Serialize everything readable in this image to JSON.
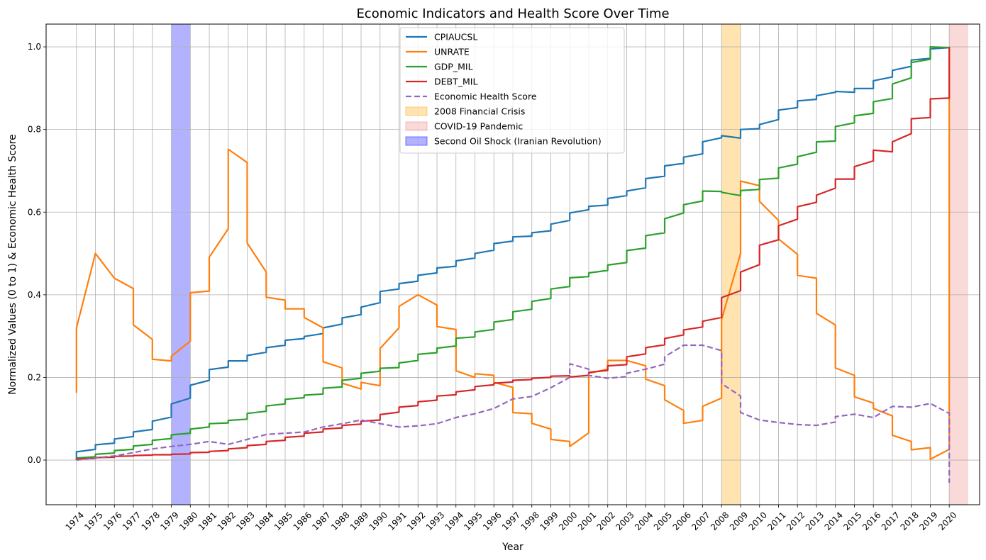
{
  "chart_data": {
    "type": "line",
    "title": "Economic Indicators and Health Score Over Time",
    "xlabel": "Year",
    "ylabel": "Normalized Values (0 to 1) & Economic Health Score",
    "xlim": [
      1972.4,
      2021.6
    ],
    "ylim": [
      -0.108,
      1.055
    ],
    "x_ticks": [
      1974,
      1975,
      1976,
      1977,
      1978,
      1979,
      1980,
      1981,
      1982,
      1983,
      1984,
      1985,
      1986,
      1987,
      1988,
      1989,
      1990,
      1991,
      1992,
      1993,
      1994,
      1995,
      1996,
      1997,
      1998,
      1999,
      2000,
      2001,
      2002,
      2003,
      2004,
      2005,
      2006,
      2007,
      2008,
      2009,
      2010,
      2011,
      2012,
      2013,
      2014,
      2015,
      2016,
      2017,
      2018,
      2019,
      2020
    ],
    "y_ticks": [
      0.0,
      0.2,
      0.4,
      0.6,
      0.8,
      1.0
    ],
    "y_tick_labels": [
      "0.0",
      "0.2",
      "0.4",
      "0.6",
      "0.8",
      "1.0"
    ],
    "grid": true,
    "legend_position": "top-center",
    "shaded_regions": [
      {
        "label": "2008 Financial Crisis",
        "start": 2008,
        "end": 2009,
        "color": "#ffa500",
        "opacity": 0.3
      },
      {
        "label": "COVID-19 Pandemic",
        "start": 2020,
        "end": 2021,
        "color": "#f08080",
        "opacity": 0.3
      },
      {
        "label": "Second Oil Shock (Iranian Revolution)",
        "start": 1979,
        "end": 1980,
        "color": "#0000ff",
        "opacity": 0.3
      }
    ],
    "series": [
      {
        "name": "CPIAUCSL",
        "color": "#1f77b4",
        "style": "solid",
        "x": [
          1974,
          1974,
          1975,
          1975,
          1976,
          1976,
          1977,
          1977,
          1978,
          1978,
          1979,
          1979,
          1980,
          1980,
          1981,
          1981,
          1982,
          1982,
          1983,
          1983,
          1984,
          1984,
          1985,
          1985,
          1986,
          1986,
          1987,
          1987,
          1988,
          1988,
          1989,
          1989,
          1990,
          1990,
          1991,
          1991,
          1992,
          1992,
          1993,
          1993,
          1994,
          1994,
          1995,
          1995,
          1996,
          1996,
          1997,
          1997,
          1998,
          1998,
          1999,
          1999,
          2000,
          2000,
          2001,
          2001,
          2002,
          2002,
          2003,
          2003,
          2004,
          2004,
          2005,
          2005,
          2006,
          2006,
          2007,
          2007,
          2008,
          2008,
          2009,
          2009,
          2010,
          2010,
          2011,
          2011,
          2012,
          2012,
          2013,
          2013,
          2014,
          2014,
          2015,
          2015,
          2016,
          2016,
          2017,
          2017,
          2018,
          2018,
          2019,
          2019,
          2020,
          2020
        ],
        "y": [
          0.004,
          0.02,
          0.026,
          0.037,
          0.041,
          0.051,
          0.057,
          0.068,
          0.074,
          0.094,
          0.104,
          0.136,
          0.15,
          0.181,
          0.193,
          0.219,
          0.225,
          0.24,
          0.24,
          0.253,
          0.261,
          0.272,
          0.278,
          0.29,
          0.294,
          0.299,
          0.306,
          0.32,
          0.329,
          0.344,
          0.352,
          0.37,
          0.381,
          0.408,
          0.414,
          0.427,
          0.433,
          0.447,
          0.453,
          0.465,
          0.469,
          0.482,
          0.489,
          0.5,
          0.508,
          0.524,
          0.53,
          0.54,
          0.542,
          0.55,
          0.555,
          0.571,
          0.58,
          0.598,
          0.606,
          0.614,
          0.617,
          0.633,
          0.64,
          0.651,
          0.659,
          0.681,
          0.687,
          0.712,
          0.718,
          0.733,
          0.741,
          0.77,
          0.78,
          0.785,
          0.779,
          0.8,
          0.802,
          0.812,
          0.824,
          0.847,
          0.853,
          0.869,
          0.873,
          0.882,
          0.89,
          0.892,
          0.89,
          0.899,
          0.899,
          0.918,
          0.927,
          0.943,
          0.953,
          0.968,
          0.972,
          0.995,
          0.998,
          1.0
        ]
      },
      {
        "name": "UNRATE",
        "color": "#ff7f0e",
        "style": "solid",
        "x": [
          1974,
          1974,
          1975,
          1975,
          1976,
          1976,
          1977,
          1977,
          1978,
          1978,
          1979,
          1979,
          1980,
          1980,
          1981,
          1981,
          1982,
          1982,
          1983,
          1983,
          1984,
          1984,
          1985,
          1985,
          1986,
          1986,
          1987,
          1987,
          1988,
          1988,
          1989,
          1989,
          1990,
          1990,
          1991,
          1991,
          1992,
          1992,
          1993,
          1993,
          1994,
          1994,
          1995,
          1995,
          1996,
          1996,
          1997,
          1997,
          1998,
          1998,
          1999,
          1999,
          2000,
          2000,
          2001,
          2001,
          2002,
          2002,
          2003,
          2003,
          2004,
          2004,
          2005,
          2005,
          2006,
          2006,
          2007,
          2007,
          2008,
          2008,
          2009,
          2009,
          2010,
          2010,
          2011,
          2011,
          2012,
          2012,
          2013,
          2013,
          2014,
          2014,
          2015,
          2015,
          2016,
          2016,
          2017,
          2017,
          2018,
          2018,
          2019,
          2019,
          2020,
          2020
        ],
        "y": [
          0.163,
          0.32,
          0.5,
          0.5,
          0.44,
          0.44,
          0.415,
          0.327,
          0.292,
          0.244,
          0.24,
          0.251,
          0.288,
          0.405,
          0.409,
          0.491,
          0.56,
          0.752,
          0.72,
          0.525,
          0.455,
          0.394,
          0.387,
          0.366,
          0.366,
          0.345,
          0.32,
          0.238,
          0.223,
          0.186,
          0.172,
          0.188,
          0.18,
          0.27,
          0.32,
          0.372,
          0.4,
          0.4,
          0.375,
          0.323,
          0.316,
          0.216,
          0.2,
          0.209,
          0.205,
          0.188,
          0.176,
          0.115,
          0.112,
          0.089,
          0.075,
          0.05,
          0.045,
          0.033,
          0.066,
          0.21,
          0.22,
          0.241,
          0.241,
          0.241,
          0.228,
          0.196,
          0.18,
          0.146,
          0.12,
          0.089,
          0.096,
          0.13,
          0.15,
          0.34,
          0.5,
          0.675,
          0.664,
          0.626,
          0.58,
          0.535,
          0.498,
          0.447,
          0.44,
          0.355,
          0.327,
          0.223,
          0.205,
          0.153,
          0.138,
          0.125,
          0.107,
          0.06,
          0.045,
          0.025,
          0.03,
          0.002,
          0.026,
          1.0
        ]
      },
      {
        "name": "GDP_MIL",
        "color": "#2ca02c",
        "style": "solid",
        "x": [
          1974,
          1974,
          1975,
          1975,
          1976,
          1976,
          1977,
          1977,
          1978,
          1978,
          1979,
          1979,
          1980,
          1980,
          1981,
          1981,
          1982,
          1982,
          1983,
          1983,
          1984,
          1984,
          1985,
          1985,
          1986,
          1986,
          1987,
          1987,
          1988,
          1988,
          1989,
          1989,
          1990,
          1990,
          1991,
          1991,
          1992,
          1992,
          1993,
          1993,
          1994,
          1994,
          1995,
          1995,
          1996,
          1996,
          1997,
          1997,
          1998,
          1998,
          1999,
          1999,
          2000,
          2000,
          2001,
          2001,
          2002,
          2002,
          2003,
          2003,
          2004,
          2004,
          2005,
          2005,
          2006,
          2006,
          2007,
          2007,
          2008,
          2008,
          2009,
          2009,
          2010,
          2010,
          2011,
          2011,
          2012,
          2012,
          2013,
          2013,
          2014,
          2014,
          2015,
          2015,
          2016,
          2016,
          2017,
          2017,
          2018,
          2018,
          2019,
          2019,
          2020,
          2020
        ],
        "y": [
          0.002,
          0.005,
          0.008,
          0.014,
          0.017,
          0.023,
          0.026,
          0.034,
          0.038,
          0.048,
          0.052,
          0.061,
          0.065,
          0.075,
          0.08,
          0.088,
          0.09,
          0.096,
          0.099,
          0.113,
          0.118,
          0.131,
          0.136,
          0.147,
          0.151,
          0.157,
          0.16,
          0.174,
          0.177,
          0.193,
          0.198,
          0.21,
          0.215,
          0.222,
          0.224,
          0.235,
          0.241,
          0.256,
          0.26,
          0.271,
          0.276,
          0.295,
          0.298,
          0.31,
          0.316,
          0.334,
          0.34,
          0.359,
          0.365,
          0.384,
          0.391,
          0.414,
          0.42,
          0.441,
          0.444,
          0.453,
          0.459,
          0.472,
          0.478,
          0.507,
          0.513,
          0.543,
          0.55,
          0.584,
          0.598,
          0.618,
          0.627,
          0.651,
          0.65,
          0.648,
          0.64,
          0.652,
          0.655,
          0.679,
          0.682,
          0.707,
          0.716,
          0.734,
          0.745,
          0.77,
          0.772,
          0.807,
          0.816,
          0.833,
          0.839,
          0.867,
          0.875,
          0.91,
          0.925,
          0.962,
          0.97,
          1.0,
          0.998,
          1.0
        ]
      },
      {
        "name": "DEBT_MIL",
        "color": "#d62728",
        "style": "solid",
        "x": [
          1974,
          1974,
          1975,
          1975,
          1976,
          1976,
          1977,
          1977,
          1978,
          1978,
          1979,
          1979,
          1980,
          1980,
          1981,
          1981,
          1982,
          1982,
          1983,
          1983,
          1984,
          1984,
          1985,
          1985,
          1986,
          1986,
          1987,
          1987,
          1988,
          1988,
          1989,
          1989,
          1990,
          1990,
          1991,
          1991,
          1992,
          1992,
          1993,
          1993,
          1994,
          1994,
          1995,
          1995,
          1996,
          1996,
          1997,
          1997,
          1998,
          1998,
          1999,
          1999,
          2000,
          2000,
          2001,
          2001,
          2002,
          2002,
          2003,
          2003,
          2004,
          2004,
          2005,
          2005,
          2006,
          2006,
          2007,
          2007,
          2008,
          2008,
          2009,
          2009,
          2010,
          2010,
          2011,
          2011,
          2012,
          2012,
          2013,
          2013,
          2014,
          2014,
          2015,
          2015,
          2016,
          2016,
          2017,
          2017,
          2018,
          2018,
          2019,
          2019,
          2020,
          2020
        ],
        "y": [
          0.0,
          0.003,
          0.004,
          0.006,
          0.007,
          0.009,
          0.01,
          0.011,
          0.012,
          0.013,
          0.013,
          0.014,
          0.015,
          0.018,
          0.019,
          0.021,
          0.023,
          0.027,
          0.03,
          0.035,
          0.038,
          0.045,
          0.048,
          0.055,
          0.058,
          0.065,
          0.068,
          0.075,
          0.078,
          0.084,
          0.087,
          0.094,
          0.097,
          0.11,
          0.116,
          0.128,
          0.132,
          0.141,
          0.145,
          0.155,
          0.158,
          0.165,
          0.17,
          0.178,
          0.182,
          0.186,
          0.189,
          0.193,
          0.195,
          0.198,
          0.2,
          0.203,
          0.204,
          0.201,
          0.205,
          0.212,
          0.217,
          0.228,
          0.231,
          0.25,
          0.257,
          0.272,
          0.279,
          0.294,
          0.303,
          0.315,
          0.322,
          0.336,
          0.345,
          0.393,
          0.41,
          0.455,
          0.473,
          0.52,
          0.533,
          0.567,
          0.583,
          0.613,
          0.624,
          0.641,
          0.658,
          0.68,
          0.68,
          0.71,
          0.724,
          0.75,
          0.746,
          0.77,
          0.79,
          0.826,
          0.829,
          0.874,
          0.876,
          1.0
        ]
      },
      {
        "name": "Economic Health Score",
        "color": "#9467bd",
        "style": "dashed",
        "x": [
          1974,
          1975,
          1976,
          1977,
          1978,
          1979,
          1980,
          1981,
          1982,
          1983,
          1984,
          1985,
          1986,
          1987,
          1988,
          1989,
          1990,
          1991,
          1992,
          1993,
          1994,
          1995,
          1996,
          1997,
          1998,
          1999,
          2000,
          2000,
          2001,
          2001,
          2002,
          2003,
          2003,
          2004,
          2005,
          2005,
          2006,
          2007,
          2008,
          2008,
          2009,
          2009,
          2010,
          2011,
          2012,
          2013,
          2014,
          2014,
          2015,
          2016,
          2017,
          2018,
          2019,
          2020,
          2020
        ],
        "y": [
          0.0,
          0.005,
          0.01,
          0.018,
          0.027,
          0.033,
          0.038,
          0.045,
          0.038,
          0.05,
          0.062,
          0.065,
          0.068,
          0.08,
          0.088,
          0.097,
          0.088,
          0.08,
          0.083,
          0.088,
          0.103,
          0.112,
          0.125,
          0.148,
          0.154,
          0.175,
          0.2,
          0.233,
          0.22,
          0.205,
          0.198,
          0.202,
          0.21,
          0.22,
          0.232,
          0.25,
          0.278,
          0.278,
          0.265,
          0.185,
          0.155,
          0.115,
          0.097,
          0.091,
          0.086,
          0.084,
          0.092,
          0.105,
          0.111,
          0.103,
          0.13,
          0.128,
          0.137,
          0.113,
          -0.055
        ]
      }
    ]
  },
  "legend": {
    "items": [
      {
        "label": "CPIAUCSL",
        "kind": "line",
        "color": "#1f77b4",
        "style": "solid"
      },
      {
        "label": "UNRATE",
        "kind": "line",
        "color": "#ff7f0e",
        "style": "solid"
      },
      {
        "label": "GDP_MIL",
        "kind": "line",
        "color": "#2ca02c",
        "style": "solid"
      },
      {
        "label": "DEBT_MIL",
        "kind": "line",
        "color": "#d62728",
        "style": "solid"
      },
      {
        "label": "Economic Health Score",
        "kind": "line",
        "color": "#9467bd",
        "style": "dashed"
      },
      {
        "label": "2008 Financial Crisis",
        "kind": "patch",
        "color": "#ffa500",
        "opacity": 0.3
      },
      {
        "label": "COVID-19 Pandemic",
        "kind": "patch",
        "color": "#f08080",
        "opacity": 0.3
      },
      {
        "label": "Second Oil Shock (Iranian Revolution)",
        "kind": "patch",
        "color": "#0000ff",
        "opacity": 0.3
      }
    ]
  }
}
